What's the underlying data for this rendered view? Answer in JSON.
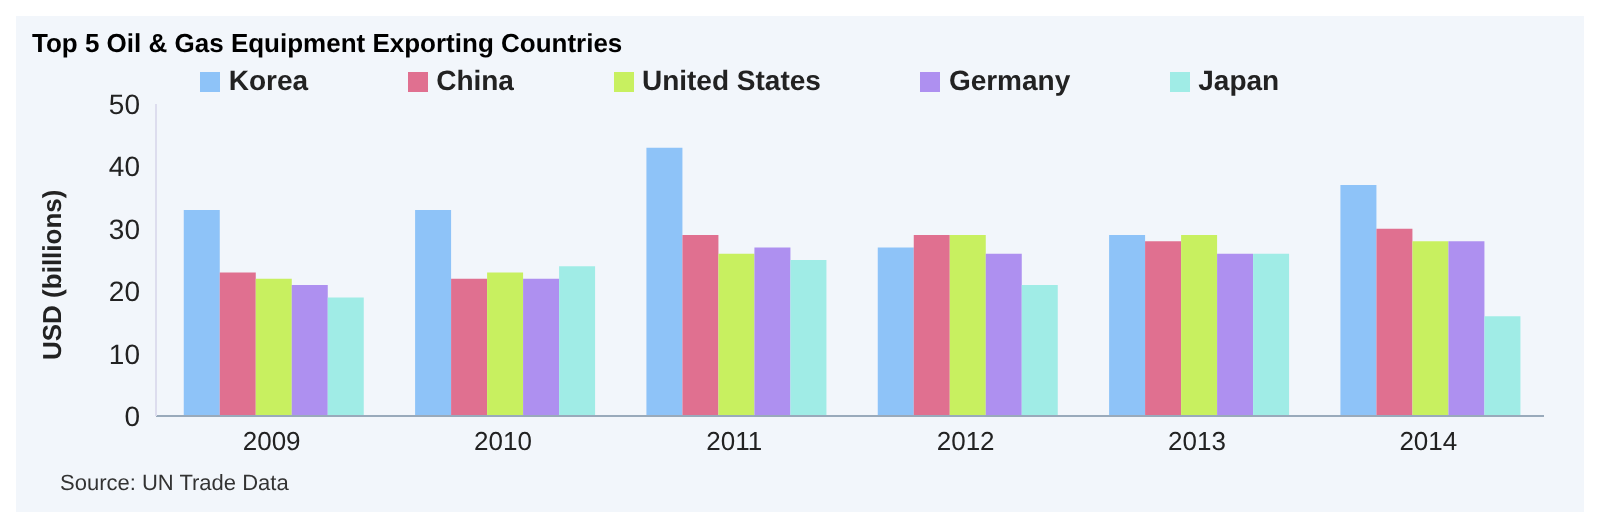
{
  "chart_data": {
    "type": "bar",
    "title": "Top 5 Oil & Gas Equipment Exporting Countries",
    "ylabel": "USD (billions)",
    "categories": [
      "2009",
      "2010",
      "2011",
      "2012",
      "2013",
      "2014"
    ],
    "series": [
      {
        "name": "Korea",
        "color": "#8ec3f8",
        "values": [
          33,
          33,
          43,
          27,
          29,
          37
        ]
      },
      {
        "name": "China",
        "color": "#e07090",
        "values": [
          23,
          22,
          29,
          29,
          28,
          30
        ]
      },
      {
        "name": "United States",
        "color": "#c8f060",
        "values": [
          22,
          23,
          26,
          29,
          29,
          28
        ]
      },
      {
        "name": "Germany",
        "color": "#ae90f0",
        "values": [
          21,
          22,
          27,
          26,
          26,
          28
        ]
      },
      {
        "name": "Japan",
        "color": "#a0ece6",
        "values": [
          19,
          24,
          25,
          21,
          26,
          16
        ]
      }
    ],
    "ylim": [
      0,
      50
    ],
    "yticks": [
      0,
      10,
      20,
      30,
      40,
      50
    ],
    "grid": false,
    "legend": "top",
    "annotations": [
      "Source: UN Trade Data"
    ]
  }
}
